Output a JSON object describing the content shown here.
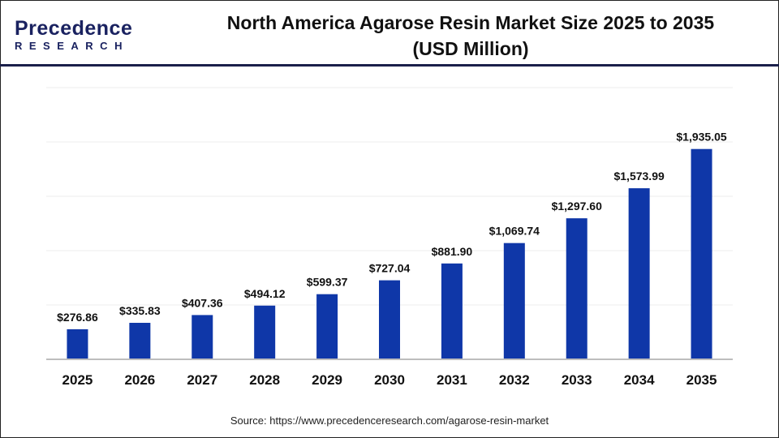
{
  "header": {
    "logo_text_main": "Precedence",
    "logo_text_sub": "RESEARCH",
    "title_line1": "North America Agarose Resin Market Size 2025 to 2035",
    "title_line2": "(USD Million)"
  },
  "footer": {
    "source": "Source: https://www.precedenceresearch.com/agarose-resin-market"
  },
  "chart_data": {
    "type": "bar",
    "title": "North America Agarose Resin Market Size 2025 to 2035 (USD Million)",
    "xlabel": "",
    "ylabel": "",
    "categories": [
      "2025",
      "2026",
      "2027",
      "2028",
      "2029",
      "2030",
      "2031",
      "2032",
      "2033",
      "2034",
      "2035"
    ],
    "values": [
      276.86,
      335.83,
      407.36,
      494.12,
      599.37,
      727.04,
      881.9,
      1069.74,
      1297.6,
      1573.99,
      1935.05
    ],
    "labels": [
      "$276.86",
      "$335.83",
      "$407.36",
      "$494.12",
      "$599.37",
      "$727.04",
      "$881.90",
      "$1,069.74",
      "$1,297.60",
      "$1,573.99",
      "$1,935.05"
    ],
    "ylim": [
      0,
      2500
    ],
    "grid_step": 500,
    "grid": true,
    "bar_color": "#0f37a8"
  }
}
